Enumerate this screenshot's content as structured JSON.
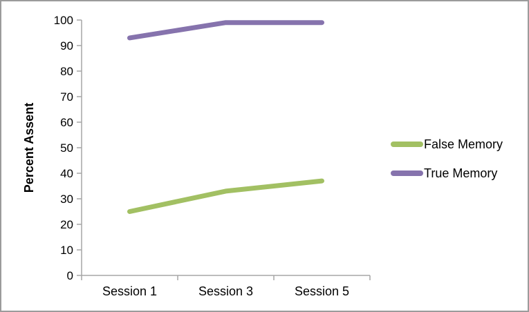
{
  "chart_data": {
    "type": "line",
    "categories": [
      "Session 1",
      "Session 3",
      "Session 5"
    ],
    "series": [
      {
        "name": "False Memory",
        "values": [
          25,
          33,
          37
        ],
        "color": "#A2C063"
      },
      {
        "name": "True Memory",
        "values": [
          93,
          99,
          99
        ],
        "color": "#8673AD"
      }
    ],
    "title": "",
    "xlabel": "",
    "ylabel": "Percent Assent",
    "ylim": [
      0,
      100
    ],
    "yticks": [
      0,
      10,
      20,
      30,
      40,
      50,
      60,
      70,
      80,
      90,
      100
    ],
    "grid": false,
    "legend_position": "right",
    "line_width": 7
  },
  "colors": {
    "axis": "#A6A6A6",
    "text": "#000000",
    "frame_border": "#9B9B9B",
    "background": "#FFFFFF"
  }
}
